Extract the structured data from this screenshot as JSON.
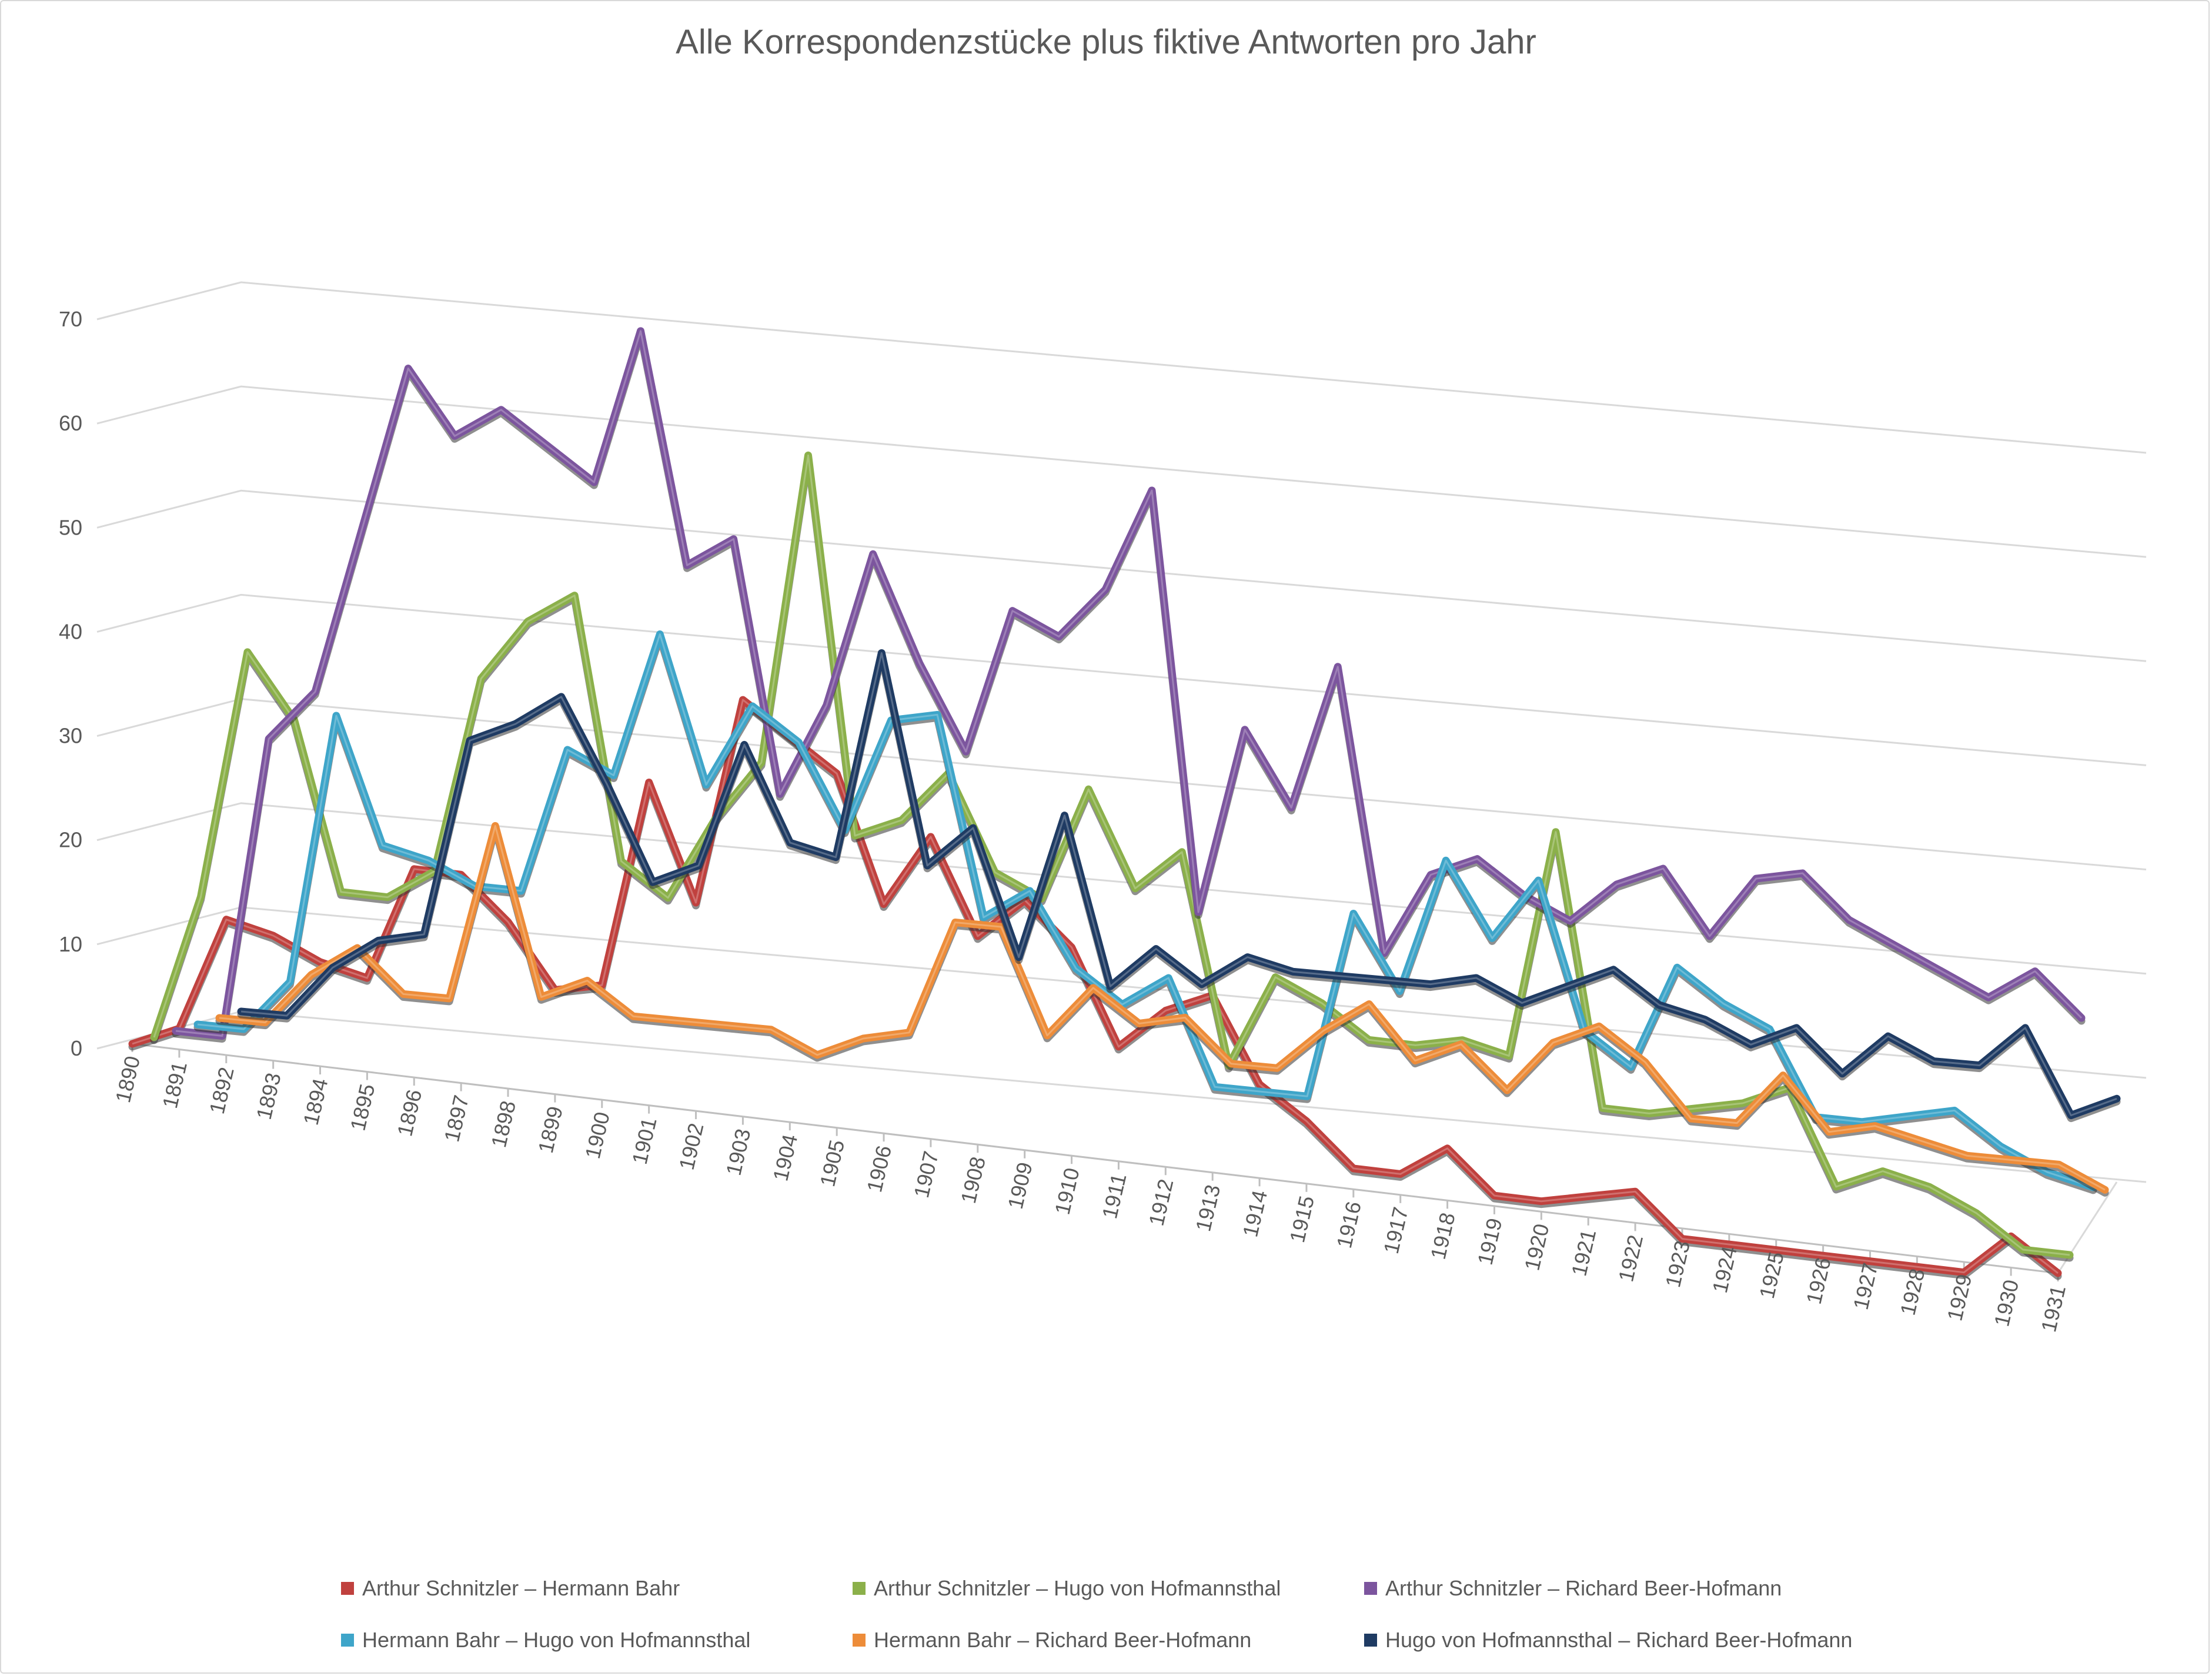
{
  "chart_data": {
    "type": "line",
    "title": "Alle Korrespondenzstücke plus fiktive Antworten pro Jahr",
    "xlabel": "",
    "ylabel": "",
    "ylim": [
      0,
      70
    ],
    "y_ticks": [
      "0",
      "10",
      "20",
      "30",
      "40",
      "50",
      "60",
      "70"
    ],
    "grid": true,
    "legend_position": "bottom",
    "categories": [
      "1890",
      "1891",
      "1892",
      "1893",
      "1894",
      "1895",
      "1896",
      "1897",
      "1898",
      "1899",
      "1900",
      "1901",
      "1902",
      "1903",
      "1904",
      "1905",
      "1906",
      "1907",
      "1908",
      "1909",
      "1910",
      "1911",
      "1912",
      "1913",
      "1914",
      "1915",
      "1916",
      "1917",
      "1918",
      "1919",
      "1920",
      "1921",
      "1922",
      "1923",
      "1924",
      "1925",
      "1926",
      "1927",
      "1928",
      "1929",
      "1930",
      "1931"
    ],
    "series": [
      {
        "name": "Hugo von Hofmannsthal – Richard Beer-Hofmann",
        "color": "#1f3b63",
        "values": [
          0,
          0,
          5,
          8,
          9,
          28,
          30,
          33,
          25,
          16,
          18,
          30,
          21,
          20,
          40,
          20,
          24,
          12,
          26,
          10,
          14,
          11,
          14,
          13,
          13,
          13,
          13,
          14,
          12,
          14,
          16,
          13,
          12,
          10,
          12,
          8,
          12,
          10,
          10,
          14,
          6,
          8
        ]
      },
      {
        "name": "Hermann Bahr – Richard Beer-Hofmann",
        "color": "#ed8c39",
        "values": [
          0,
          0,
          5,
          8,
          4,
          4,
          21,
          5,
          7,
          4,
          4,
          4,
          4,
          2,
          4,
          5,
          16,
          16,
          6,
          11,
          8,
          9,
          5,
          5,
          9,
          12,
          7,
          9,
          5,
          10,
          12,
          9,
          4,
          4,
          9,
          4,
          5,
          4,
          3,
          3,
          3,
          1
        ]
      },
      {
        "name": "Hermann Bahr – Hugo von Hofmannsthal",
        "color": "#3ea5c9",
        "values": [
          0,
          0,
          5,
          31,
          19,
          18,
          16,
          16,
          30,
          28,
          42,
          28,
          36,
          33,
          25,
          36,
          37,
          18,
          21,
          14,
          11,
          14,
          4,
          4,
          4,
          22,
          15,
          28,
          21,
          27,
          13,
          10,
          20,
          17,
          15,
          7,
          7,
          8,
          9,
          6,
          4,
          3
        ]
      },
      {
        "name": "Arthur Schnitzler – Richard Beer-Hofmann",
        "color": "#7c559e",
        "values": [
          0,
          0,
          29,
          34,
          50,
          66,
          60,
          63,
          60,
          57,
          72,
          50,
          53,
          29,
          38,
          53,
          43,
          35,
          49,
          47,
          52,
          62,
          22,
          40,
          33,
          47,
          20,
          28,
          30,
          27,
          25,
          29,
          31,
          25,
          31,
          32,
          28,
          26,
          24,
          22,
          25,
          21
        ]
      },
      {
        "name": "Arthur Schnitzler – Hugo von Hofmannsthal",
        "color": "#8bb04a",
        "values": [
          0,
          14,
          38,
          32,
          16,
          16,
          19,
          38,
          44,
          47,
          22,
          19,
          27,
          33,
          63,
          27,
          29,
          34,
          25,
          23,
          34,
          25,
          29,
          9,
          18,
          16,
          13,
          13,
          14,
          13,
          35,
          9,
          9,
          10,
          11,
          13,
          4,
          6,
          5,
          3,
          0,
          0
        ]
      },
      {
        "name": "Arthur Schnitzler – Hermann Bahr",
        "color": "#c0413e",
        "values": [
          0,
          2,
          13,
          12,
          10,
          9,
          20,
          20,
          16,
          10,
          11,
          31,
          20,
          40,
          37,
          34,
          22,
          29,
          20,
          24,
          20,
          11,
          15,
          17,
          9,
          6,
          2,
          2,
          5,
          1,
          1,
          2,
          3,
          -1,
          -1,
          -1,
          -1,
          -1,
          -1,
          -1,
          3,
          0
        ]
      }
    ]
  },
  "legend_order": [
    5,
    4,
    3,
    2,
    1,
    0
  ]
}
